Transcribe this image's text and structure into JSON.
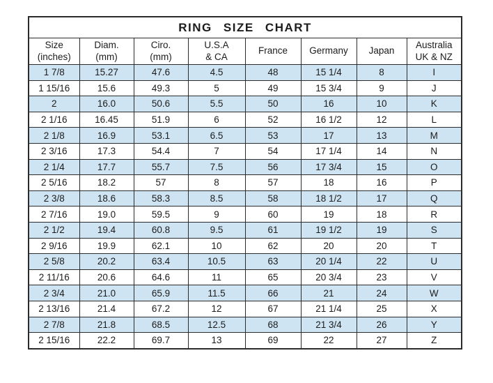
{
  "chart_data": {
    "type": "table",
    "title": "RING SIZE CHART",
    "columns": [
      {
        "line1": "Size",
        "line2": "(inches)"
      },
      {
        "line1": "Diam.",
        "line2": "(mm)"
      },
      {
        "line1": "Ciro.",
        "line2": "(mm)"
      },
      {
        "line1": "U.S.A",
        "line2": "& CA"
      },
      {
        "line1": "France",
        "line2": ""
      },
      {
        "line1": "Germany",
        "line2": ""
      },
      {
        "line1": "Japan",
        "line2": ""
      },
      {
        "line1": "Australia",
        "line2": "UK & NZ"
      }
    ],
    "rows": [
      [
        "1 7/8",
        "15.27",
        "47.6",
        "4.5",
        "48",
        "15 1/4",
        "8",
        "I"
      ],
      [
        "1 15/16",
        "15.6",
        "49.3",
        "5",
        "49",
        "15 3/4",
        "9",
        "J"
      ],
      [
        "2",
        "16.0",
        "50.6",
        "5.5",
        "50",
        "16",
        "10",
        "K"
      ],
      [
        "2 1/16",
        "16.45",
        "51.9",
        "6",
        "52",
        "16 1/2",
        "12",
        "L"
      ],
      [
        "2 1/8",
        "16.9",
        "53.1",
        "6.5",
        "53",
        "17",
        "13",
        "M"
      ],
      [
        "2 3/16",
        "17.3",
        "54.4",
        "7",
        "54",
        "17 1/4",
        "14",
        "N"
      ],
      [
        "2 1/4",
        "17.7",
        "55.7",
        "7.5",
        "56",
        "17 3/4",
        "15",
        "O"
      ],
      [
        "2 5/16",
        "18.2",
        "57",
        "8",
        "57",
        "18",
        "16",
        "P"
      ],
      [
        "2 3/8",
        "18.6",
        "58.3",
        "8.5",
        "58",
        "18 1/2",
        "17",
        "Q"
      ],
      [
        "2 7/16",
        "19.0",
        "59.5",
        "9",
        "60",
        "19",
        "18",
        "R"
      ],
      [
        "2 1/2",
        "19.4",
        "60.8",
        "9.5",
        "61",
        "19 1/2",
        "19",
        "S"
      ],
      [
        "2 9/16",
        "19.9",
        "62.1",
        "10",
        "62",
        "20",
        "20",
        "T"
      ],
      [
        "2 5/8",
        "20.2",
        "63.4",
        "10.5",
        "63",
        "20 1/4",
        "22",
        "U"
      ],
      [
        "2 11/16",
        "20.6",
        "64.6",
        "11",
        "65",
        "20 3/4",
        "23",
        "V"
      ],
      [
        "2 3/4",
        "21.0",
        "65.9",
        "11.5",
        "66",
        "21",
        "24",
        "W"
      ],
      [
        "2 13/16",
        "21.4",
        "67.2",
        "12",
        "67",
        "21 1/4",
        "25",
        "X"
      ],
      [
        "2 7/8",
        "21.8",
        "68.5",
        "12.5",
        "68",
        "21 3/4",
        "26",
        "Y"
      ],
      [
        "2 15/16",
        "22.2",
        "69.7",
        "13",
        "69",
        "22",
        "27",
        "Z"
      ]
    ],
    "layout": {
      "striping": "odd data rows shaded",
      "legend_position": "none",
      "grid": "full table borders"
    },
    "colors": {
      "row_alt_background": "#cfe4f2",
      "border": "#2b2b2b",
      "text": "#1c1c1c",
      "background": "#ffffff"
    }
  }
}
